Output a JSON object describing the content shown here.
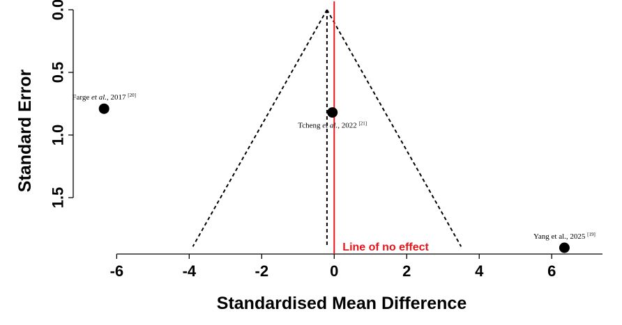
{
  "chart_data": {
    "type": "scatter",
    "subtype": "funnel-plot",
    "xlabel": "Standardised Mean Difference",
    "ylabel": "Standard Error",
    "xlim": [
      -7.2,
      7.4
    ],
    "ylim": [
      1.95,
      0
    ],
    "y_axis_inverted": true,
    "xticks": [
      -6,
      -4,
      -2,
      0,
      2,
      4,
      6
    ],
    "yticks": [
      0.0,
      0.5,
      1.0,
      1.5
    ],
    "xtick_labels": [
      "-6",
      "-4",
      "-2",
      "0",
      "2",
      "4",
      "6"
    ],
    "ytick_labels": [
      "0.0",
      "0.5",
      "1.0",
      "1.5"
    ],
    "grid": false,
    "points": [
      {
        "study": "Farge",
        "etal": "et al.",
        "year": "2017",
        "ref": "[20]",
        "x": -6.35,
        "y": 0.79,
        "label_pos": "above"
      },
      {
        "study": "Tcheng",
        "etal": "et al.",
        "year": "2022",
        "ref": "[21]",
        "x": -0.05,
        "y": 0.82,
        "label_pos": "below"
      },
      {
        "study": "Yang",
        "etal": "et al.",
        "year": "2025",
        "ref": "[19]",
        "x": 6.35,
        "y": 1.9,
        "label_pos": "above"
      }
    ],
    "funnel": {
      "apex": {
        "x": -0.2,
        "y": 0.0
      },
      "left_base": {
        "x": -3.9,
        "y": 1.89
      },
      "right_base": {
        "x": 3.5,
        "y": 1.89
      },
      "line_style": "dashed",
      "color": "#000000"
    },
    "pooled_estimate": {
      "x": -0.2,
      "y_start": 0.0,
      "y_end": 1.89,
      "line_style": "dashed"
    },
    "reference_line": {
      "x": 0,
      "label": "Line of no effect",
      "color": "#e8141b"
    }
  }
}
